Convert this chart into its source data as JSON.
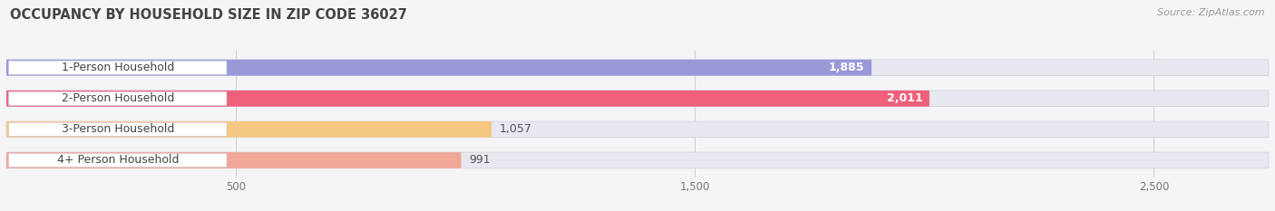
{
  "title": "OCCUPANCY BY HOUSEHOLD SIZE IN ZIP CODE 36027",
  "source": "Source: ZipAtlas.com",
  "categories": [
    "1-Person Household",
    "2-Person Household",
    "3-Person Household",
    "4+ Person Household"
  ],
  "values": [
    1885,
    2011,
    1057,
    991
  ],
  "bar_colors": [
    "#9999d8",
    "#f0607a",
    "#f5c882",
    "#f0a898"
  ],
  "bar_bg_color": "#e8e8f0",
  "dot_colors": [
    "#7070c0",
    "#e03060",
    "#e0a040",
    "#e08878"
  ],
  "background_color": "#f5f5f8",
  "xlim": [
    0,
    2750
  ],
  "xticks": [
    500,
    1500,
    2500
  ],
  "label_fontsize": 9,
  "value_fontsize": 9,
  "title_fontsize": 10.5,
  "bar_height": 0.52
}
